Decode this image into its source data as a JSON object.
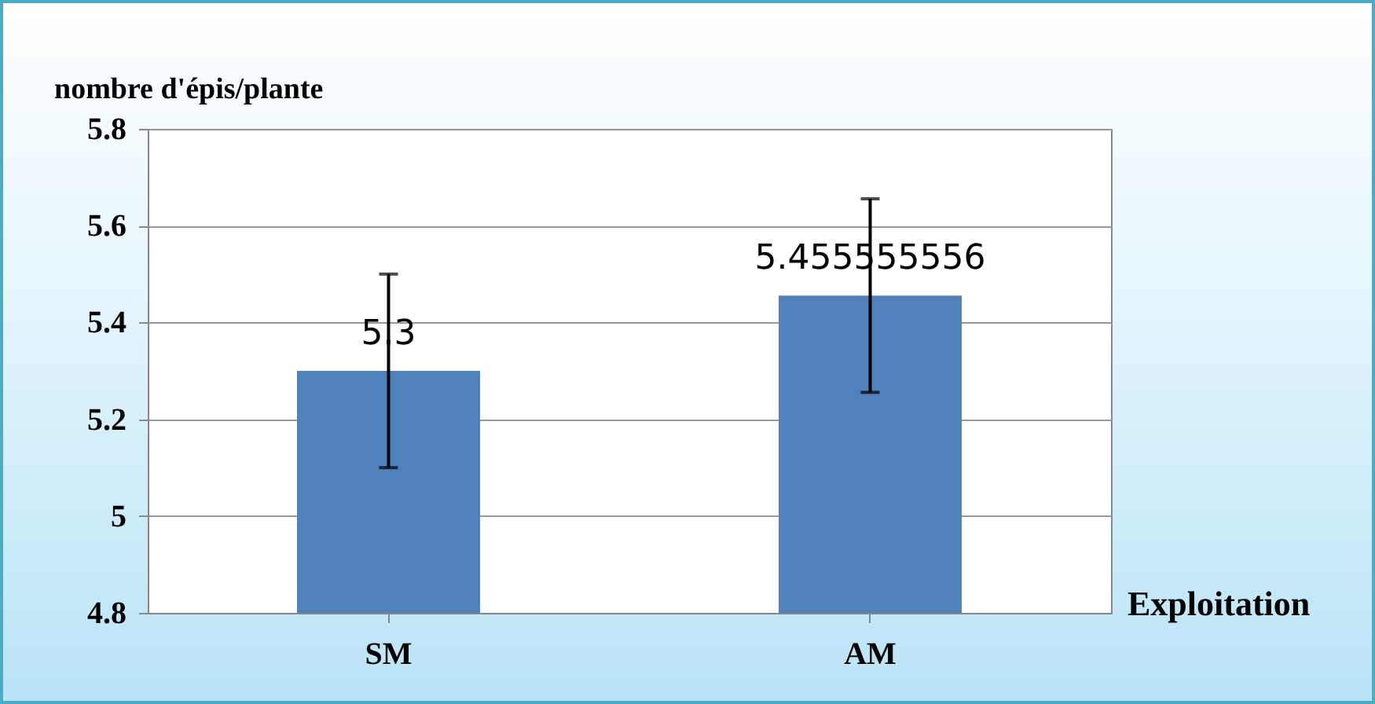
{
  "chart_data": {
    "type": "bar",
    "xlabel": "Exploitation",
    "ylabel": "nombre d'épis/plante",
    "categories": [
      "SM",
      "AM"
    ],
    "values": [
      5.3,
      5.455555556
    ],
    "errors": [
      0.2,
      0.2
    ],
    "color": "#4f81bd",
    "ylim": [
      4.8,
      5.8
    ],
    "yticks": [
      4.8,
      {
        "value": 5,
        "label": "5"
      },
      5.2,
      5.4,
      5.6,
      5.8
    ],
    "grid": "y",
    "data_labels": true
  }
}
